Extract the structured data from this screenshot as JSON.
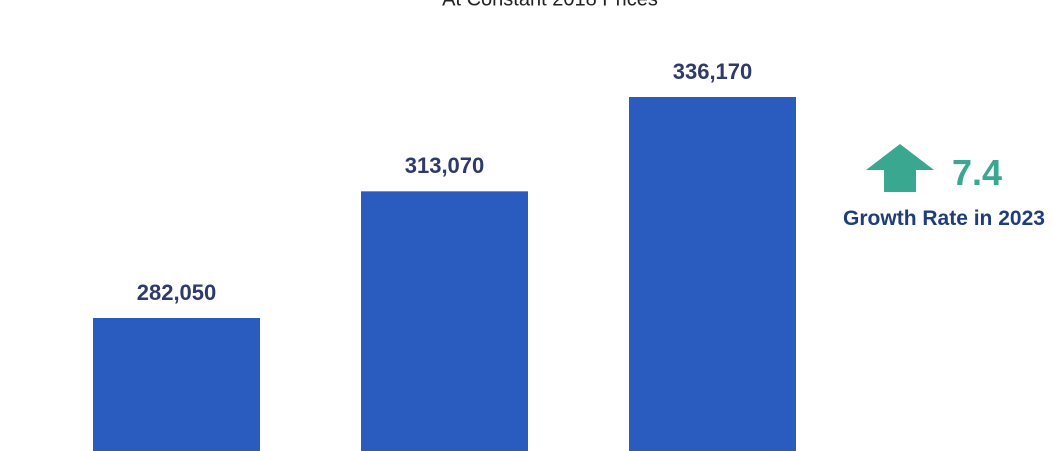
{
  "chart_data": {
    "type": "bar",
    "subtitle": "At Constant 2018 Prices",
    "values": [
      282050,
      313070,
      336170
    ],
    "value_labels": [
      "282,050",
      "313,070",
      "336,170"
    ],
    "color": "#2a5cc0",
    "annotation": {
      "value": 7.4,
      "label": "Growth Rate in 2023",
      "color": "#3aa891"
    }
  }
}
